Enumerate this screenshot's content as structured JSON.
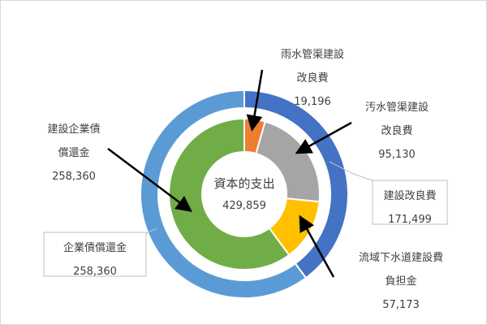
{
  "chart_data": {
    "type": "pie",
    "subtype": "double-doughnut",
    "center": {
      "title": "資本的支出",
      "total": "429,859"
    },
    "outer_ring": [
      {
        "name": "建設改良費",
        "label": [
          "建設改良費"
        ],
        "value": 171499,
        "value_label": "171,499",
        "color": "#4472C4"
      },
      {
        "name": "企業債償還金",
        "label": [
          "企業債償還金"
        ],
        "value": 258360,
        "value_label": "258,360",
        "color": "#5B9BD5"
      }
    ],
    "inner_ring": [
      {
        "name": "雨水管渠建設改良費",
        "label": [
          "雨水管渠建設",
          "改良費"
        ],
        "value": 19196,
        "value_label": "19,196",
        "color": "#ED7D31"
      },
      {
        "name": "汚水管渠建設改良費",
        "label": [
          "汚水管渠建設",
          "改良費"
        ],
        "value": 95130,
        "value_label": "95,130",
        "color": "#A5A5A5"
      },
      {
        "name": "流域下水道建設費負担金",
        "label": [
          "流域下水道建設費",
          "負担金"
        ],
        "value": 57173,
        "value_label": "57,173",
        "color": "#FFC000"
      },
      {
        "name": "建設企業債償還金",
        "label": [
          "建設企業債",
          "償還金"
        ],
        "value": 258360,
        "value_label": "258,360",
        "color": "#70AD47"
      }
    ]
  }
}
